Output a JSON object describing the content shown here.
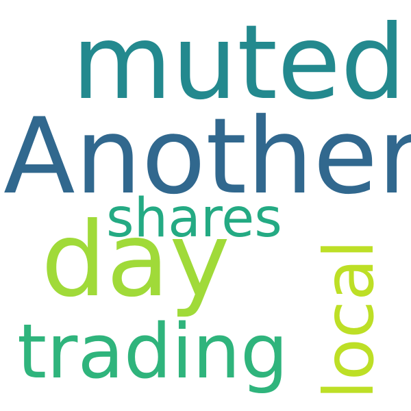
{
  "words": [
    {
      "key": "muted",
      "text": "muted",
      "color": "#23898e"
    },
    {
      "key": "another",
      "text": "Another",
      "color": "#31688e"
    },
    {
      "key": "shares",
      "text": "shares",
      "color": "#24aa83"
    },
    {
      "key": "day",
      "text": "day",
      "color": "#a0da39"
    },
    {
      "key": "trading",
      "text": "trading",
      "color": "#2fb47c"
    },
    {
      "key": "local",
      "text": "local",
      "color": "#bddf26",
      "orientation": "vertical"
    }
  ]
}
